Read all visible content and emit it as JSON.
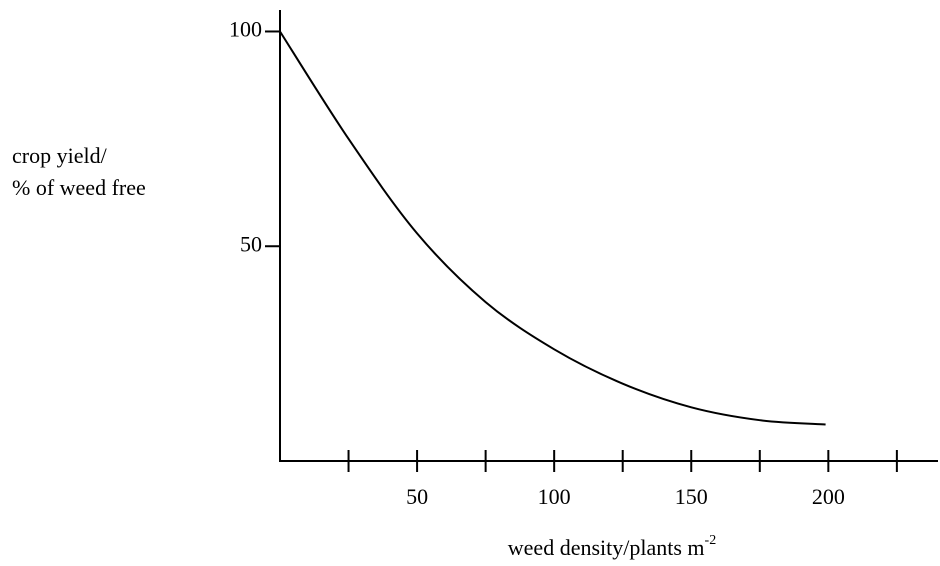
{
  "chart_data": {
    "type": "line",
    "ylabel": [
      "crop yield/",
      "% of weed free"
    ],
    "xlabel": "weed density/plants m",
    "xlabel_superscript": "-2",
    "x": [
      0,
      25,
      50,
      75,
      100,
      125,
      150,
      175,
      199
    ],
    "series": [
      {
        "color": "#000000",
        "values": [
          100,
          75,
          53,
          37,
          26,
          18,
          12.5,
          9.5,
          8.5
        ]
      }
    ],
    "xlim": [
      0,
      240
    ],
    "xticks": [
      50,
      100,
      150,
      200
    ],
    "xminor_ticks": [
      25,
      75,
      125,
      175,
      225
    ],
    "ylim": [
      0,
      105
    ],
    "yticks": [
      50,
      100
    ]
  }
}
